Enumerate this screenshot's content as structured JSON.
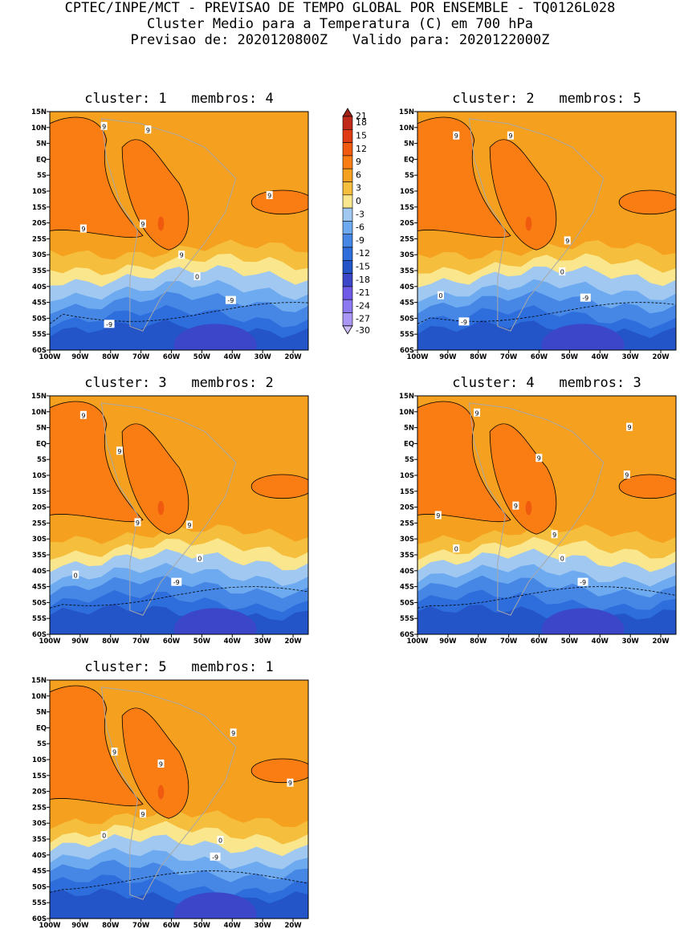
{
  "header": {
    "line1": "CPTEC/INPE/MCT - PREVISAO DE TEMPO GLOBAL POR ENSEMBLE - TQ0126L028",
    "line2": "Cluster Medio para a Temperatura (C) em 700 hPa",
    "line3": "Previsao de: 2020120800Z   Valido para: 2020122000Z"
  },
  "panels": [
    {
      "title": "cluster: 1   membros: 4"
    },
    {
      "title": "cluster: 2   membros: 5"
    },
    {
      "title": "cluster: 3   membros: 2"
    },
    {
      "title": "cluster: 4   membros: 3"
    },
    {
      "title": "cluster: 5   membros: 1"
    }
  ],
  "axes": {
    "lat_labels": [
      "15N",
      "10N",
      "5N",
      "EQ",
      "5S",
      "10S",
      "15S",
      "20S",
      "25S",
      "30S",
      "35S",
      "40S",
      "45S",
      "50S",
      "55S",
      "60S"
    ],
    "lon_labels": [
      "100W",
      "90W",
      "80W",
      "70W",
      "60W",
      "50W",
      "40W",
      "30W",
      "20W"
    ]
  },
  "colorbar": {
    "labels": [
      "21",
      "18",
      "15",
      "12",
      "9",
      "6",
      "3",
      "0",
      "-3",
      "-6",
      "-9",
      "-12",
      "-15",
      "-18",
      "-21",
      "-24",
      "-27",
      "-30"
    ],
    "colors": [
      "#a01e14",
      "#c0281a",
      "#e03c14",
      "#f05a0f",
      "#fa7d14",
      "#f5a01e",
      "#f5be3c",
      "#fae68c",
      "#a0c8f0",
      "#6eaaf0",
      "#4687e6",
      "#2d6edc",
      "#2355c8",
      "#3c46c8",
      "#6e5ae6",
      "#8c78f0",
      "#aa96f5",
      "#cdbcfa"
    ]
  },
  "contour_labels": {
    "warm": "9",
    "zero": "0",
    "cold": "-9"
  },
  "chart_data": {
    "type": "heatmap",
    "variable": "Temperatura (C) em 700 hPa",
    "lat_range": [
      -60,
      15
    ],
    "lon_range": [
      -100,
      -15
    ],
    "contour_levels": [
      21,
      18,
      15,
      12,
      9,
      6,
      3,
      0,
      -3,
      -6,
      -9,
      -12,
      -15,
      -18,
      -21,
      -24,
      -27,
      -30
    ]
  }
}
